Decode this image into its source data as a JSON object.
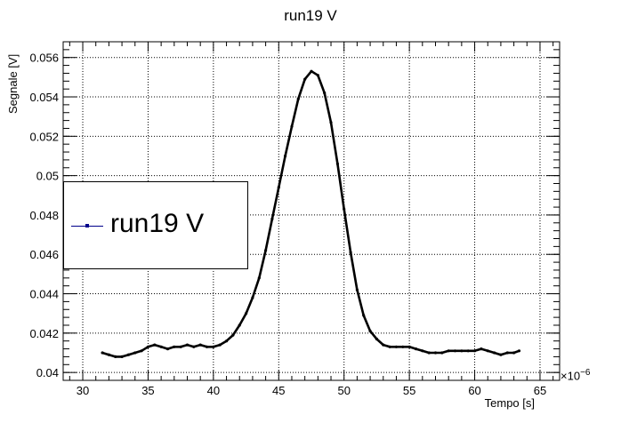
{
  "chart_data": {
    "type": "scatter",
    "title": "run19 V",
    "xlabel": "Tempo [s]",
    "ylabel": "Segnale [V]",
    "x_multiplier_label": "×10",
    "x_multiplier_exp": "−6",
    "xlim": [
      28.5,
      66.5
    ],
    "ylim": [
      0.0396,
      0.0568
    ],
    "x_ticks": [
      30,
      35,
      40,
      45,
      50,
      55,
      60,
      65
    ],
    "x_tick_labels": [
      "30",
      "35",
      "40",
      "45",
      "50",
      "55",
      "60",
      "65"
    ],
    "y_ticks": [
      0.04,
      0.042,
      0.044,
      0.046,
      0.048,
      0.05,
      0.052,
      0.054,
      0.056
    ],
    "y_tick_labels": [
      "0.04",
      "0.042",
      "0.044",
      "0.046",
      "0.048",
      "0.05",
      "0.052",
      "0.054",
      "0.056"
    ],
    "grid": true,
    "legend_position": "middle-left",
    "series": [
      {
        "name": "run19 V",
        "color": "#000000",
        "legend_color": "#00008b",
        "points": [
          [
            31.5,
            0.041
          ],
          [
            32.0,
            0.0409
          ],
          [
            32.5,
            0.0408
          ],
          [
            33.0,
            0.0408
          ],
          [
            33.5,
            0.0409
          ],
          [
            34.0,
            0.041
          ],
          [
            34.5,
            0.0411
          ],
          [
            35.0,
            0.0413
          ],
          [
            35.5,
            0.0414
          ],
          [
            36.0,
            0.0413
          ],
          [
            36.5,
            0.0412
          ],
          [
            37.0,
            0.0413
          ],
          [
            37.5,
            0.0413
          ],
          [
            38.0,
            0.0414
          ],
          [
            38.5,
            0.0413
          ],
          [
            39.0,
            0.0414
          ],
          [
            39.5,
            0.0413
          ],
          [
            40.0,
            0.0413
          ],
          [
            40.5,
            0.0414
          ],
          [
            41.0,
            0.0416
          ],
          [
            41.5,
            0.0419
          ],
          [
            42.0,
            0.0424
          ],
          [
            42.5,
            0.043
          ],
          [
            43.0,
            0.0438
          ],
          [
            43.5,
            0.0448
          ],
          [
            44.0,
            0.0462
          ],
          [
            44.5,
            0.0478
          ],
          [
            45.0,
            0.0494
          ],
          [
            45.5,
            0.051
          ],
          [
            46.0,
            0.0525
          ],
          [
            46.5,
            0.0539
          ],
          [
            47.0,
            0.0549
          ],
          [
            47.5,
            0.0553
          ],
          [
            48.0,
            0.0551
          ],
          [
            48.5,
            0.0542
          ],
          [
            49.0,
            0.0527
          ],
          [
            49.5,
            0.0506
          ],
          [
            50.0,
            0.0483
          ],
          [
            50.5,
            0.0461
          ],
          [
            51.0,
            0.0442
          ],
          [
            51.5,
            0.0429
          ],
          [
            52.0,
            0.0421
          ],
          [
            52.5,
            0.0417
          ],
          [
            53.0,
            0.0414
          ],
          [
            53.5,
            0.0413
          ],
          [
            54.0,
            0.0413
          ],
          [
            54.5,
            0.0413
          ],
          [
            55.0,
            0.0413
          ],
          [
            55.5,
            0.0412
          ],
          [
            56.0,
            0.0411
          ],
          [
            56.5,
            0.041
          ],
          [
            57.0,
            0.041
          ],
          [
            57.5,
            0.041
          ],
          [
            58.0,
            0.0411
          ],
          [
            58.5,
            0.0411
          ],
          [
            59.0,
            0.0411
          ],
          [
            59.5,
            0.0411
          ],
          [
            60.0,
            0.0411
          ],
          [
            60.5,
            0.0412
          ],
          [
            61.0,
            0.0411
          ],
          [
            61.5,
            0.041
          ],
          [
            62.0,
            0.0409
          ],
          [
            62.5,
            0.041
          ],
          [
            63.0,
            0.041
          ],
          [
            63.4,
            0.0411
          ]
        ]
      }
    ]
  }
}
